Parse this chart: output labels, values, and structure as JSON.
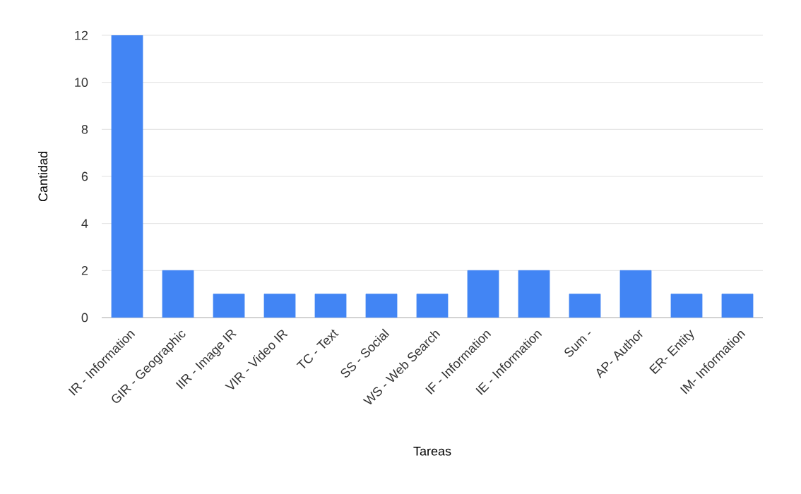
{
  "chart_data": {
    "type": "bar",
    "xlabel": "Tareas",
    "ylabel": "Cantidad",
    "categories": [
      "IR - Information",
      "GIR - Geographic",
      "IIR - Image IR",
      "VIR - Video IR",
      "TC - Text",
      "SS - Social",
      "WS - Web Search",
      "IF - Information",
      "IE - Information",
      "Sum -",
      "AP- Author",
      "ER- Entity",
      "IM- Information"
    ],
    "values": [
      12,
      2,
      1,
      1,
      1,
      1,
      1,
      2,
      2,
      1,
      2,
      1,
      1
    ],
    "color": "#4285f4",
    "ylim": [
      0,
      12
    ],
    "yticks": [
      0,
      2,
      4,
      6,
      8,
      10,
      12
    ],
    "grid": "y"
  }
}
